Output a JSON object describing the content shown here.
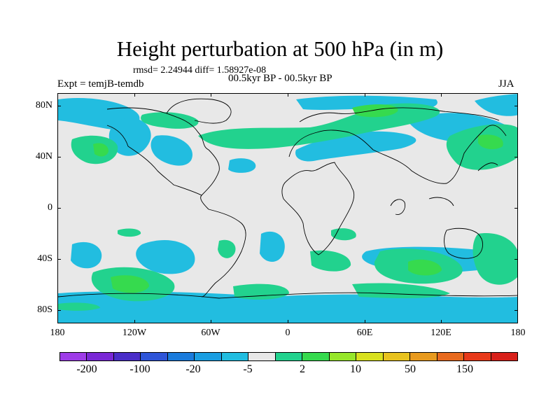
{
  "title": "Height perturbation at 500 hPa (in m)",
  "stats": "rmsd= 2.24944 diff= 1.58927e-08",
  "period": "00.5kyr BP - 00.5kyr BP",
  "experiment": "Expt = temjB-temdb",
  "season": "JJA",
  "map": {
    "projection": "cylindrical-equidistant",
    "lon_range": [
      -180,
      180
    ],
    "lat_range": [
      -90,
      90
    ],
    "background_color": "#e8e8e8",
    "y_tick_labels": [
      "80N",
      "40N",
      "0",
      "40S",
      "80S"
    ],
    "x_tick_labels": [
      "180",
      "120W",
      "60W",
      "0",
      "60E",
      "120E",
      "180"
    ]
  },
  "colorbar": {
    "colors": [
      "#9e3ce8",
      "#7a28d6",
      "#4a2ec8",
      "#2f55d8",
      "#1a7bdc",
      "#1a9ee2",
      "#22bde0",
      "#e8e8e8",
      "#22d28e",
      "#36da4e",
      "#96e62a",
      "#d8e01e",
      "#e8c21e",
      "#e89a1e",
      "#e86a1e",
      "#e83a1a",
      "#d8201a"
    ],
    "labels": [
      "-200",
      "-100",
      "-20",
      "-5",
      "2",
      "10",
      "50",
      "150"
    ]
  }
}
